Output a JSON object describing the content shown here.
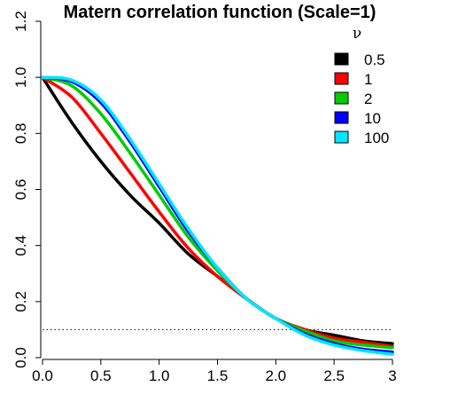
{
  "chart_data": {
    "type": "line",
    "title": "Matern correlation function (Scale=1)",
    "xlabel": "",
    "ylabel": "",
    "xlim": [
      0,
      3
    ],
    "ylim": [
      0,
      1.2
    ],
    "x_ticks": [
      "0.0",
      "0.5",
      "1.0",
      "1.5",
      "2.0",
      "2.5",
      "3"
    ],
    "y_ticks": [
      "0.0",
      "0.2",
      "0.4",
      "0.6",
      "0.8",
      "1.0",
      "1.2"
    ],
    "grid": false,
    "legend_title": "ν",
    "legend_position": "top-right",
    "reference_line": {
      "y": 0.1,
      "style": "dotted"
    },
    "series": [
      {
        "name": "0.5",
        "color": "#000000",
        "x": [
          0,
          0.25,
          0.5,
          0.75,
          1.0,
          1.25,
          1.5,
          1.75,
          2.0,
          2.25,
          2.5,
          2.75,
          3.0
        ],
        "y": [
          1.0,
          0.84,
          0.7,
          0.58,
          0.48,
          0.37,
          0.29,
          0.21,
          0.14,
          0.1,
          0.08,
          0.06,
          0.05
        ]
      },
      {
        "name": "1",
        "color": "#ff0000",
        "x": [
          0,
          0.25,
          0.5,
          0.75,
          1.0,
          1.25,
          1.5,
          1.75,
          2.0,
          2.25,
          2.5,
          2.75,
          3.0
        ],
        "y": [
          1.0,
          0.93,
          0.8,
          0.66,
          0.52,
          0.39,
          0.29,
          0.21,
          0.14,
          0.1,
          0.07,
          0.055,
          0.04
        ]
      },
      {
        "name": "2",
        "color": "#00cc00",
        "x": [
          0,
          0.25,
          0.5,
          0.75,
          1.0,
          1.25,
          1.5,
          1.75,
          2.0,
          2.25,
          2.5,
          2.75,
          3.0
        ],
        "y": [
          1.0,
          0.97,
          0.87,
          0.73,
          0.58,
          0.43,
          0.31,
          0.21,
          0.14,
          0.095,
          0.06,
          0.045,
          0.035
        ]
      },
      {
        "name": "10",
        "color": "#0000ff",
        "x": [
          0,
          0.25,
          0.5,
          0.75,
          1.0,
          1.25,
          1.5,
          1.75,
          2.0,
          2.25,
          2.5,
          2.75,
          3.0
        ],
        "y": [
          1.0,
          0.985,
          0.91,
          0.77,
          0.61,
          0.45,
          0.32,
          0.21,
          0.14,
          0.085,
          0.05,
          0.03,
          0.02
        ]
      },
      {
        "name": "100",
        "color": "#00e5ff",
        "x": [
          0,
          0.25,
          0.5,
          0.75,
          1.0,
          1.25,
          1.5,
          1.75,
          2.0,
          2.25,
          2.5,
          2.75,
          3.0
        ],
        "y": [
          1.0,
          0.99,
          0.92,
          0.78,
          0.62,
          0.46,
          0.32,
          0.21,
          0.14,
          0.08,
          0.045,
          0.025,
          0.012
        ]
      }
    ]
  }
}
